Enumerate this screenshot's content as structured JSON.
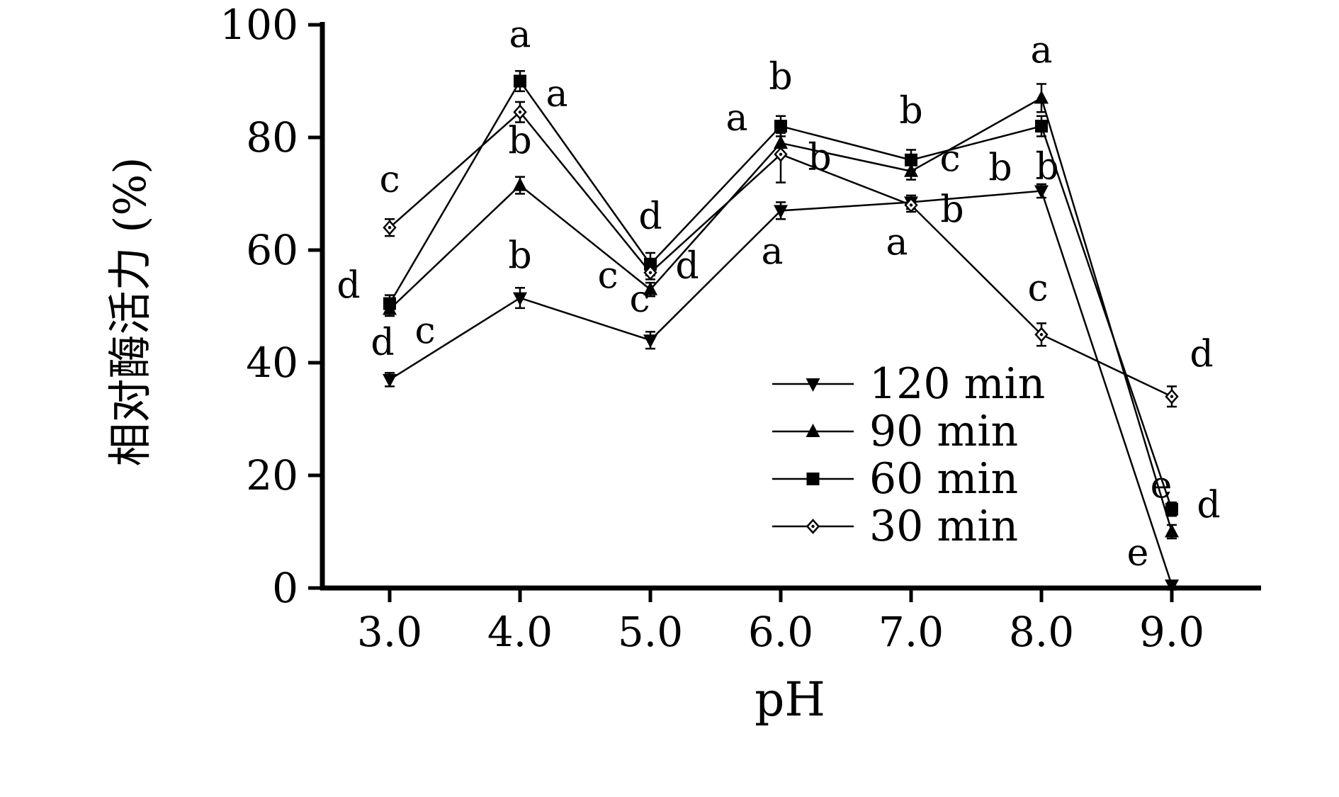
{
  "figure": {
    "background_color": "#ffffff",
    "line_color": "#000000"
  },
  "chart_data": {
    "type": "line",
    "title": "",
    "xlabel": "pH",
    "ylabel": "相对酶活力 (%)",
    "x": [
      3.0,
      4.0,
      5.0,
      6.0,
      7.0,
      8.0,
      9.0
    ],
    "xticks": [
      "3.0",
      "4.0",
      "5.0",
      "6.0",
      "7.0",
      "8.0",
      "9.0"
    ],
    "ylim": [
      0,
      100
    ],
    "yticks": [
      0,
      20,
      40,
      60,
      80,
      100
    ],
    "grid": false,
    "legend_position": "inside-center-right",
    "series": [
      {
        "name": "120 min",
        "marker": "triangle-down",
        "color": "#000000",
        "values": [
          37,
          51.5,
          44,
          67,
          68.5,
          70.5,
          0.5
        ],
        "errors": [
          1.2,
          1.8,
          1.5,
          1.5,
          1.2,
          1.2,
          0.8
        ],
        "point_labels": [
          "d",
          "b",
          "c",
          "a",
          "b",
          "b",
          "e"
        ],
        "label_offsets": [
          [
            -10,
            -35
          ],
          [
            0,
            -42
          ],
          [
            -15,
            -40
          ],
          [
            -12,
            75
          ],
          [
            58,
            28
          ],
          [
            -58,
            -15
          ],
          [
            -48,
            -28
          ]
        ]
      },
      {
        "name": "90 min",
        "marker": "triangle-up",
        "color": "#000000",
        "values": [
          49.5,
          71.5,
          53,
          79,
          74,
          87,
          10
        ],
        "errors": [
          1.2,
          1.5,
          1.2,
          1.8,
          1.5,
          2.5,
          1.2
        ],
        "point_labels": [
          "c",
          "b",
          "c",
          "a",
          "c",
          "a",
          "e"
        ],
        "label_offsets": [
          [
            50,
            48
          ],
          [
            0,
            -45
          ],
          [
            -60,
            -2
          ],
          [
            -62,
            -18
          ],
          [
            55,
            0
          ],
          [
            0,
            -50
          ],
          [
            -15,
            -48
          ]
        ]
      },
      {
        "name": "60 min",
        "marker": "square",
        "color": "#000000",
        "values": [
          50.5,
          90,
          57.5,
          82,
          76,
          82,
          14
        ],
        "errors": [
          1.5,
          1.8,
          2.0,
          1.8,
          1.8,
          1.8,
          1.2
        ],
        "point_labels": [
          "d",
          "a",
          "d",
          "b",
          "b",
          "b",
          "d"
        ],
        "label_offsets": [
          [
            -58,
            -8
          ],
          [
            0,
            -48
          ],
          [
            0,
            -50
          ],
          [
            0,
            -52
          ],
          [
            0,
            -52
          ],
          [
            8,
            75
          ],
          [
            52,
            12
          ]
        ]
      },
      {
        "name": "30 min",
        "marker": "diamond",
        "color": "#000000",
        "values": [
          64,
          84.5,
          56,
          77,
          68,
          45,
          34
        ],
        "errors": [
          1.5,
          1.8,
          1.2,
          5.0,
          1.2,
          2.0,
          1.8
        ],
        "point_labels": [
          "c",
          "a",
          "d",
          "b",
          "a",
          "c",
          "d"
        ],
        "label_offsets": [
          [
            0,
            -50
          ],
          [
            52,
            -8
          ],
          [
            52,
            8
          ],
          [
            55,
            22
          ],
          [
            -20,
            70
          ],
          [
            -5,
            -48
          ],
          [
            42,
            -42
          ]
        ]
      }
    ]
  }
}
